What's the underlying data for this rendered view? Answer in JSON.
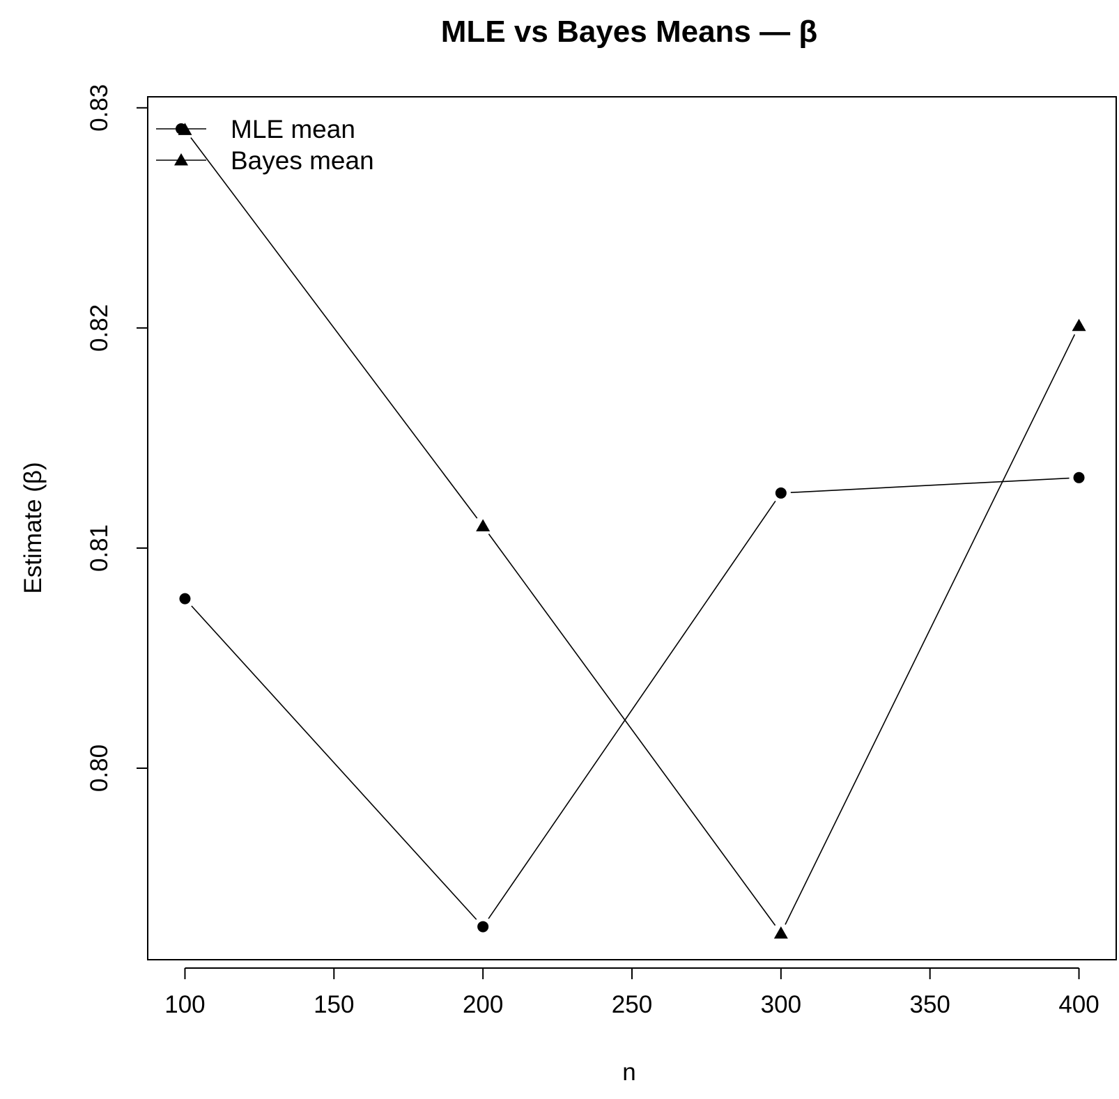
{
  "chart_data": {
    "type": "line",
    "title": "MLE vs Bayes Means — β",
    "xlabel": "n",
    "ylabel": "Estimate (β)",
    "x": [
      100,
      200,
      300,
      400
    ],
    "xticks": [
      100,
      150,
      200,
      250,
      300,
      350,
      400
    ],
    "xtick_labels": [
      "100",
      "150",
      "200",
      "250",
      "300",
      "350",
      "400"
    ],
    "yticks": [
      0.8,
      0.81,
      0.82,
      0.83
    ],
    "ytick_labels": [
      "0.80",
      "0.81",
      "0.82",
      "0.83"
    ],
    "xlim": [
      87.5,
      412.5
    ],
    "ylim": [
      0.7913,
      0.8305
    ],
    "grid": false,
    "legend_position": "top-left",
    "series": [
      {
        "name": "MLE mean",
        "marker": "circle",
        "values": [
          0.8077,
          0.7928,
          0.8125,
          0.8132
        ]
      },
      {
        "name": "Bayes mean",
        "marker": "triangle",
        "values": [
          0.829,
          0.811,
          0.7925,
          0.8201
        ]
      }
    ]
  }
}
